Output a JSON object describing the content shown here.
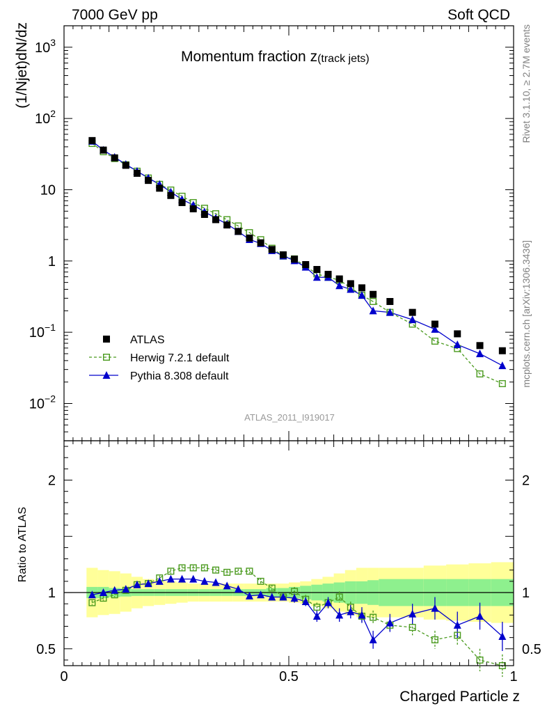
{
  "header": {
    "energy_label": "7000 GeV pp",
    "process_label": "Soft QCD"
  },
  "side": {
    "rivet_label": "Rivet 3.1.10, ≥ 2.7M events",
    "source_label": "mcplots.cern.ch [arXiv:1306.3436]"
  },
  "chart_data": {
    "type": "scatter",
    "title_main": "Momentum fraction z",
    "title_sub": "(track jets)",
    "analysis_label": "ATLAS_2011_I919017",
    "xlabel": "Charged Particle z",
    "ylabel_main": "(1/Njet)dN/dz",
    "ylabel_ratio": "Ratio to ATLAS",
    "xlim": [
      0,
      1
    ],
    "ylim_main": [
      0.003,
      2000
    ],
    "yscale_main": "log",
    "ylim_ratio": [
      0.35,
      2.35
    ],
    "x_ticks": [
      {
        "v": 0,
        "label": "0"
      },
      {
        "v": 0.5,
        "label": "0.5"
      },
      {
        "v": 1,
        "label": "1"
      }
    ],
    "y_ticks_main": [
      {
        "v": 0.01,
        "base": "10",
        "exp": "−2"
      },
      {
        "v": 0.1,
        "base": "10",
        "exp": "−1"
      },
      {
        "v": 1,
        "base": "1",
        "exp": ""
      },
      {
        "v": 10,
        "base": "10",
        "exp": ""
      },
      {
        "v": 100,
        "base": "10",
        "exp": "2"
      },
      {
        "v": 1000,
        "base": "10",
        "exp": "3"
      }
    ],
    "y_ticks_ratio": [
      {
        "v": 0.5,
        "label": "0.5"
      },
      {
        "v": 1,
        "label": "1"
      },
      {
        "v": 2,
        "label": "2"
      }
    ],
    "x": [
      0.0625,
      0.0875,
      0.1125,
      0.1375,
      0.1625,
      0.1875,
      0.2125,
      0.2375,
      0.2625,
      0.2875,
      0.3125,
      0.3375,
      0.3625,
      0.3875,
      0.4125,
      0.4375,
      0.4625,
      0.4875,
      0.5125,
      0.5375,
      0.5625,
      0.5875,
      0.6125,
      0.6375,
      0.6625,
      0.6875,
      0.725,
      0.775,
      0.825,
      0.875,
      0.925,
      0.975
    ],
    "xerr": [
      0.0125,
      0.0125,
      0.0125,
      0.0125,
      0.0125,
      0.0125,
      0.0125,
      0.0125,
      0.0125,
      0.0125,
      0.0125,
      0.0125,
      0.0125,
      0.0125,
      0.0125,
      0.0125,
      0.0125,
      0.0125,
      0.0125,
      0.0125,
      0.0125,
      0.0125,
      0.0125,
      0.0125,
      0.0125,
      0.0125,
      0.025,
      0.025,
      0.025,
      0.025,
      0.025,
      0.025
    ],
    "series": [
      {
        "name": "ATLAS",
        "color": "#000000",
        "marker": "square-filled",
        "values": [
          49,
          36,
          28,
          22,
          17,
          13.5,
          10.5,
          8.3,
          6.6,
          5.4,
          4.5,
          3.8,
          3.2,
          2.6,
          2.1,
          1.8,
          1.45,
          1.22,
          1.06,
          0.89,
          0.76,
          0.65,
          0.56,
          0.48,
          0.42,
          0.34,
          0.27,
          0.19,
          0.13,
          0.095,
          0.065,
          0.055
        ]
      },
      {
        "name": "Herwig 7.2.1 default",
        "color": "#4a9a1e",
        "marker": "square-open",
        "line": "dashed",
        "values": [
          44.6,
          34.2,
          27.4,
          22.4,
          18.2,
          14.6,
          11.9,
          9.9,
          8.1,
          6.6,
          5.5,
          4.6,
          3.8,
          3.1,
          2.5,
          1.99,
          1.51,
          1.17,
          1.07,
          0.84,
          0.66,
          0.59,
          0.54,
          0.42,
          0.33,
          0.27,
          0.19,
          0.13,
          0.075,
          0.059,
          0.026,
          0.019
        ],
        "ratio": [
          0.91,
          0.95,
          0.98,
          1.02,
          1.07,
          1.08,
          1.13,
          1.19,
          1.22,
          1.22,
          1.22,
          1.2,
          1.18,
          1.19,
          1.19,
          1.1,
          1.04,
          0.96,
          1.01,
          0.94,
          0.87,
          0.91,
          0.96,
          0.87,
          0.79,
          0.78,
          0.71,
          0.69,
          0.58,
          0.62,
          0.4,
          0.35
        ],
        "ratio_err": [
          0.02,
          0.02,
          0.02,
          0.02,
          0.02,
          0.02,
          0.02,
          0.02,
          0.02,
          0.02,
          0.02,
          0.02,
          0.02,
          0.02,
          0.02,
          0.03,
          0.03,
          0.03,
          0.04,
          0.04,
          0.04,
          0.04,
          0.05,
          0.05,
          0.06,
          0.06,
          0.06,
          0.07,
          0.08,
          0.09,
          0.1,
          0.1
        ]
      },
      {
        "name": "Pythia 8.308 default",
        "color": "#0000cc",
        "marker": "triangle-filled",
        "line": "solid",
        "values": [
          48,
          36,
          28.6,
          22.7,
          18.2,
          14.6,
          11.9,
          9.3,
          7.3,
          6.1,
          4.9,
          4.0,
          3.3,
          2.6,
          2.0,
          1.76,
          1.4,
          1.18,
          1.01,
          0.82,
          0.59,
          0.59,
          0.45,
          0.4,
          0.33,
          0.2,
          0.19,
          0.15,
          0.11,
          0.067,
          0.05,
          0.034
        ],
        "ratio": [
          0.98,
          1.0,
          1.02,
          1.03,
          1.07,
          1.08,
          1.1,
          1.12,
          1.12,
          1.12,
          1.1,
          1.09,
          1.06,
          1.03,
          0.97,
          0.98,
          0.96,
          0.96,
          0.95,
          0.92,
          0.79,
          0.91,
          0.8,
          0.83,
          0.8,
          0.58,
          0.73,
          0.81,
          0.86,
          0.71,
          0.79,
          0.61
        ],
        "ratio_err": [
          0.01,
          0.01,
          0.01,
          0.01,
          0.01,
          0.01,
          0.01,
          0.01,
          0.01,
          0.01,
          0.01,
          0.01,
          0.02,
          0.02,
          0.02,
          0.02,
          0.03,
          0.03,
          0.04,
          0.04,
          0.05,
          0.05,
          0.06,
          0.06,
          0.07,
          0.08,
          0.08,
          0.09,
          0.1,
          0.12,
          0.12,
          0.13
        ]
      }
    ],
    "bands": {
      "stat_color": "#8ef08e",
      "total_color": "#ffff99",
      "stat_halfwidth": [
        0.05,
        0.05,
        0.04,
        0.035,
        0.03,
        0.03,
        0.03,
        0.03,
        0.03,
        0.03,
        0.03,
        0.03,
        0.03,
        0.03,
        0.03,
        0.03,
        0.04,
        0.04,
        0.05,
        0.06,
        0.07,
        0.08,
        0.09,
        0.1,
        0.1,
        0.11,
        0.12,
        0.12,
        0.12,
        0.12,
        0.12,
        0.12
      ],
      "total_halfwidth": [
        0.22,
        0.2,
        0.19,
        0.17,
        0.14,
        0.12,
        0.11,
        0.1,
        0.09,
        0.08,
        0.08,
        0.08,
        0.08,
        0.08,
        0.08,
        0.08,
        0.08,
        0.08,
        0.09,
        0.1,
        0.12,
        0.14,
        0.17,
        0.2,
        0.22,
        0.22,
        0.22,
        0.22,
        0.24,
        0.25,
        0.26,
        0.27
      ]
    },
    "legend_position": "bottom-left",
    "grid": false
  }
}
